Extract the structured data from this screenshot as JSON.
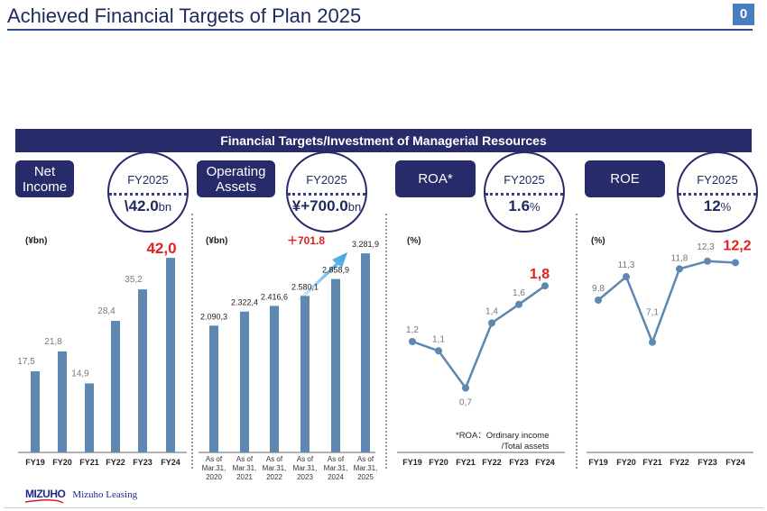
{
  "title": "Achieved Financial Targets of Plan 2025",
  "page_number": "0",
  "banner": "Financial Targets/Investment of Managerial Resources",
  "panels": [
    {
      "label": "Net Income",
      "target_title": "FY2025",
      "target_value": "\\42.0",
      "target_unit": "bn",
      "unit": "(¥bn)"
    },
    {
      "label": "Operating Assets",
      "target_title": "FY2025",
      "target_value": "¥+700.0",
      "target_unit": "bn",
      "unit": "(¥bn)",
      "increase": "＋701.8"
    },
    {
      "label": "ROA*",
      "target_title": "FY2025",
      "target_value": "1.6",
      "target_unit": "%",
      "unit": "(%)",
      "note1": "*ROA：Ordinary income",
      "note2": "/Total assets"
    },
    {
      "label": "ROE",
      "target_title": "FY2025",
      "target_value": "12",
      "target_unit": "%",
      "unit": "(%)"
    }
  ],
  "footer": {
    "brand": "MIZUHO",
    "company": "Mizuho Leasing"
  },
  "colors": {
    "navy": "#272b69",
    "bar": "#5e88b0",
    "highlight": "#e02020"
  },
  "chart_data": [
    {
      "type": "bar",
      "title": "Net Income",
      "ylabel": "(¥bn)",
      "categories": [
        "FY19",
        "FY20",
        "FY21",
        "FY22",
        "FY23",
        "FY24"
      ],
      "values": [
        17.5,
        21.8,
        14.9,
        28.4,
        35.2,
        42.0
      ],
      "labels": [
        "17,5",
        "21,8",
        "14,9",
        "28,4",
        "35,2",
        "42,0"
      ]
    },
    {
      "type": "bar",
      "title": "Operating Assets",
      "ylabel": "(¥bn)",
      "categories": [
        "As of Mar.31, 2020",
        "As of Mar.31, 2021",
        "As of Mar.31, 2022",
        "As of Mar.31, 2023",
        "As of Mar.31, 2024",
        "As of Mar.31, 2025"
      ],
      "values": [
        2090.3,
        2322.4,
        2416.6,
        2580.1,
        2858.9,
        3281.9
      ],
      "labels": [
        "2.090,3",
        "2.322,4",
        "2.416,6",
        "2.580,1",
        "2.858,9",
        "3.281,9"
      ]
    },
    {
      "type": "line",
      "title": "ROA*",
      "ylabel": "(%)",
      "categories": [
        "FY19",
        "FY20",
        "FY21",
        "FY22",
        "FY23",
        "FY24"
      ],
      "values": [
        1.2,
        1.1,
        0.7,
        1.4,
        1.6,
        1.8
      ],
      "labels": [
        "1,2",
        "1,1",
        "0,7",
        "1,4",
        "1,6",
        "1,8"
      ]
    },
    {
      "type": "line",
      "title": "ROE",
      "ylabel": "(%)",
      "categories": [
        "FY19",
        "FY20",
        "FY21",
        "FY22",
        "FY23",
        "FY24"
      ],
      "values": [
        9.8,
        11.3,
        7.1,
        11.8,
        12.3,
        12.2
      ],
      "labels": [
        "9,8",
        "11,3",
        "7,1",
        "11,8",
        "12,3",
        "12,2"
      ]
    }
  ]
}
